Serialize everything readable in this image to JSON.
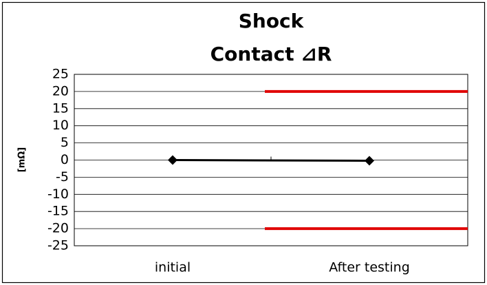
{
  "chart_data": {
    "type": "line",
    "title": [
      "Shock",
      "Contact ⊿R"
    ],
    "ylabel": "[mΩ]",
    "categories": [
      "initial",
      "After testing"
    ],
    "series": [
      {
        "color": "#000000",
        "values": [
          0,
          -0.2
        ]
      }
    ],
    "limits": [
      {
        "value": 20,
        "color": "#e00000"
      },
      {
        "value": -20,
        "color": "#e00000"
      }
    ],
    "ylim": [
      -25,
      25
    ],
    "yticks": [
      25,
      20,
      15,
      10,
      5,
      0,
      -5,
      -10,
      -15,
      -20,
      -25
    ],
    "grid": true
  }
}
